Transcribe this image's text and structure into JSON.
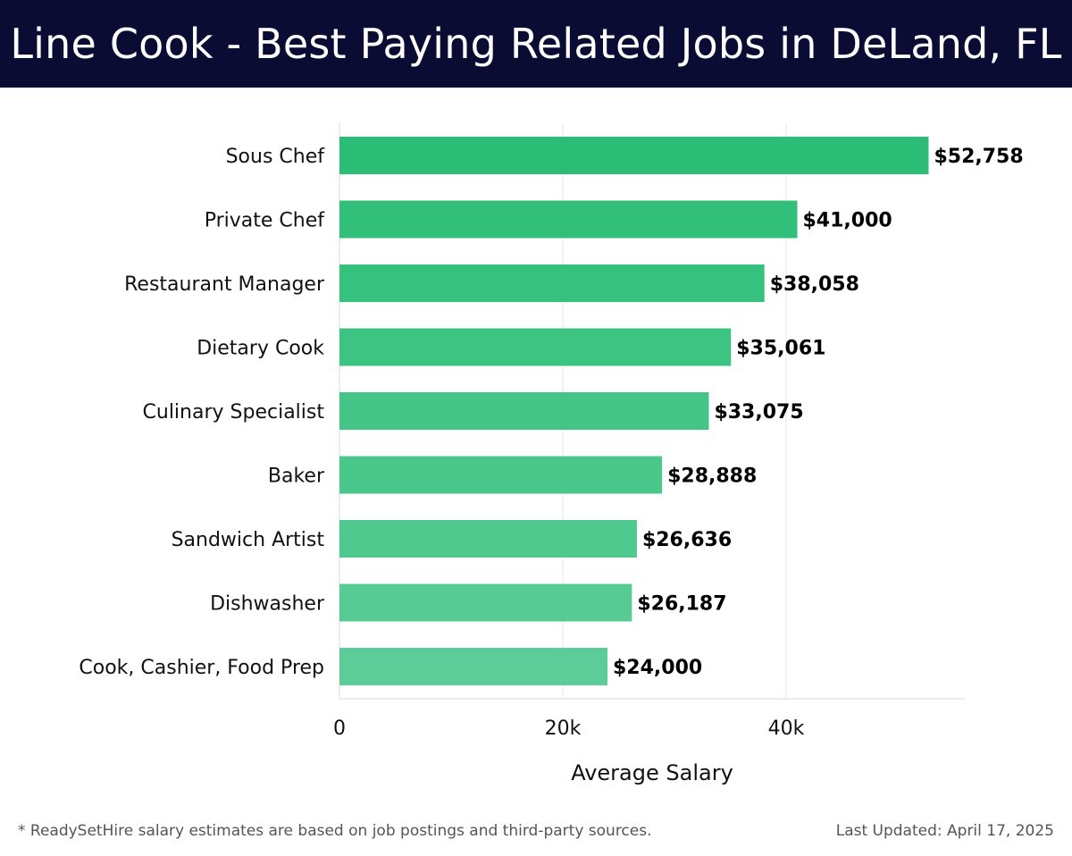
{
  "title": "Line Cook - Best Paying Related Jobs in DeLand, FL",
  "footnote": "* ReadySetHire salary estimates are based on job postings and third-party sources.",
  "last_updated": "Last Updated: April 17, 2025",
  "colors": {
    "header_bg": "#0b0c33",
    "bar_top": "#2bbd75",
    "bar_bottom": "#5ccd98",
    "grid": "#e6e6e6"
  },
  "chart_data": {
    "type": "bar",
    "orientation": "horizontal",
    "categories": [
      "Sous Chef",
      "Private Chef",
      "Restaurant Manager",
      "Dietary Cook",
      "Culinary Specialist",
      "Baker",
      "Sandwich Artist",
      "Dishwasher",
      "Cook, Cashier, Food Prep"
    ],
    "values": [
      52758,
      41000,
      38058,
      35061,
      33075,
      28888,
      26636,
      26187,
      24000
    ],
    "value_labels": [
      "$52,758",
      "$41,000",
      "$38,058",
      "$35,061",
      "$33,075",
      "$28,888",
      "$26,636",
      "$26,187",
      "$24,000"
    ],
    "xlabel": "Average Salary",
    "ylabel": "",
    "xlim": [
      0,
      56000
    ],
    "x_ticks": [
      0,
      20000,
      40000
    ],
    "x_tick_labels": [
      "0",
      "20k",
      "40k"
    ],
    "grid": true
  }
}
